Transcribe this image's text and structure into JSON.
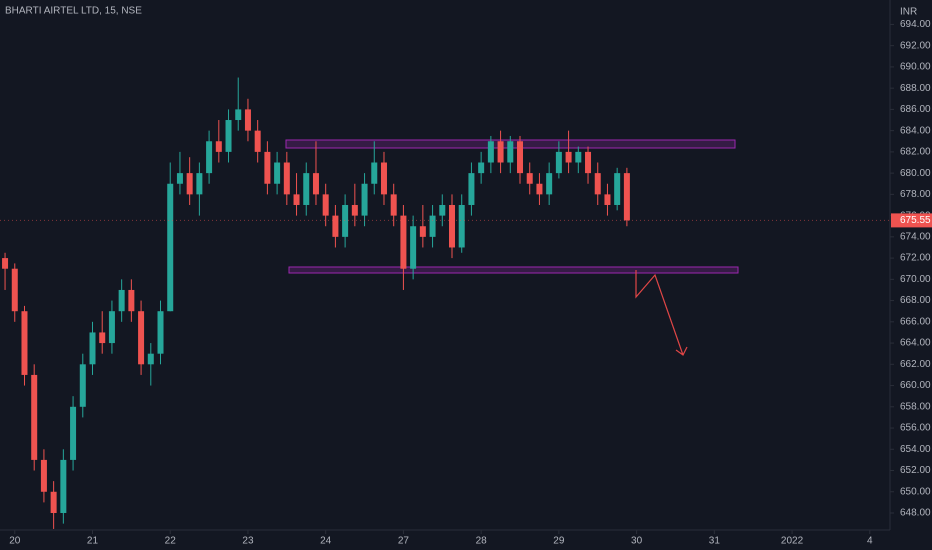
{
  "chart_data": {
    "type": "candlestick",
    "title": "BHARTI AIRTEL LTD, 15, NSE",
    "y_unit": "INR",
    "up_color": "#26a69a",
    "down_color": "#ef5350",
    "x": [
      -0.125,
      0,
      0.125,
      0.25,
      0.375,
      0.5,
      0.625,
      0.75,
      0.875,
      1,
      1.125,
      1.25,
      1.375,
      1.5,
      1.625,
      1.75,
      1.875,
      2,
      2.125,
      2.25,
      2.375,
      2.5,
      2.625,
      2.75,
      2.875,
      3,
      3.125,
      3.25,
      3.375,
      3.5,
      3.625,
      3.75,
      3.875,
      4,
      4.125,
      4.25,
      4.375,
      4.5,
      4.625,
      4.75,
      4.875,
      5,
      5.125,
      5.25,
      5.375,
      5.5,
      5.625,
      5.75,
      5.875,
      6,
      6.125,
      6.25,
      6.375,
      6.5,
      6.625,
      6.75,
      6.875,
      7,
      7.125,
      7.25,
      7.375,
      7.5,
      7.625,
      7.75,
      7.875
    ],
    "open": [
      672,
      671,
      667,
      661,
      653,
      650,
      648,
      653,
      658,
      662,
      665,
      664,
      667,
      669,
      667,
      662,
      663,
      667,
      679,
      680,
      678,
      680,
      683,
      682,
      685,
      686,
      684,
      682,
      679,
      681,
      678,
      677,
      680,
      678,
      676,
      674,
      677,
      676,
      679,
      681,
      678,
      676,
      671,
      675,
      674,
      676,
      677,
      673,
      677,
      680,
      681,
      683,
      681,
      683,
      680,
      679,
      678,
      680,
      682,
      681,
      682,
      680,
      678,
      677,
      680
    ],
    "high": [
      672.5,
      671.5,
      667.5,
      662,
      654,
      651,
      654,
      659,
      663,
      666,
      667,
      668,
      670,
      670,
      668,
      664,
      668,
      681,
      682,
      681.5,
      681,
      684,
      685,
      686,
      689,
      687,
      685,
      683,
      682,
      682,
      680,
      681,
      683,
      679,
      677,
      678,
      679,
      680,
      683,
      682,
      679,
      677,
      676,
      677,
      677,
      678,
      678,
      678,
      681,
      682,
      683.5,
      684,
      683.5,
      683.5,
      681,
      680,
      681,
      683,
      684,
      682.5,
      682.5,
      681,
      679,
      680.5,
      680.5
    ],
    "low": [
      669,
      666,
      660,
      652,
      649,
      646.5,
      647,
      652,
      657,
      661,
      663,
      663,
      666,
      666,
      661,
      660,
      662,
      667,
      678,
      677,
      676,
      679,
      681,
      681,
      684,
      683,
      681,
      678,
      678,
      677,
      676,
      676,
      677,
      675,
      673,
      673,
      675,
      675,
      678,
      677,
      675,
      669,
      670,
      673,
      673,
      675,
      672,
      672.5,
      676,
      679,
      680,
      680,
      680,
      679,
      678,
      677,
      677,
      679.5,
      680,
      680,
      679,
      677,
      676,
      676.5,
      675
    ],
    "close": [
      671,
      667,
      661,
      653,
      650,
      648,
      653,
      658,
      662,
      665,
      664,
      667,
      669,
      667,
      662,
      663,
      667,
      679,
      680,
      678,
      680,
      683,
      682,
      685,
      686,
      684,
      682,
      679,
      681,
      678,
      677,
      680,
      678,
      676,
      674,
      677,
      676,
      679,
      681,
      678,
      676,
      671,
      675,
      674,
      676,
      677,
      673,
      677,
      680,
      681,
      683,
      681,
      683,
      680,
      679,
      678,
      680,
      682,
      681,
      682,
      680,
      678,
      677,
      680,
      675.55
    ],
    "xlim": [
      -0.19,
      11.26
    ],
    "xticks": [
      {
        "value": 0,
        "label": "20"
      },
      {
        "value": 1,
        "label": "21"
      },
      {
        "value": 2,
        "label": "22"
      },
      {
        "value": 3,
        "label": "23"
      },
      {
        "value": 4,
        "label": "24"
      },
      {
        "value": 5,
        "label": "27"
      },
      {
        "value": 6,
        "label": "28"
      },
      {
        "value": 7,
        "label": "29"
      },
      {
        "value": 8,
        "label": "30"
      },
      {
        "value": 9,
        "label": "31"
      },
      {
        "value": 10,
        "label": "2022"
      },
      {
        "value": 11,
        "label": "4"
      }
    ],
    "ylim": [
      646.4,
      696.3
    ],
    "yticks": [
      {
        "value": 648,
        "label": "648.00"
      },
      {
        "value": 650,
        "label": "650.00"
      },
      {
        "value": 652,
        "label": "652.00"
      },
      {
        "value": 654,
        "label": "654.00"
      },
      {
        "value": 656,
        "label": "656.00"
      },
      {
        "value": 658,
        "label": "658.00"
      },
      {
        "value": 660,
        "label": "660.00"
      },
      {
        "value": 662,
        "label": "662.00"
      },
      {
        "value": 664,
        "label": "664.00"
      },
      {
        "value": 666,
        "label": "666.00"
      },
      {
        "value": 668,
        "label": "668.00"
      },
      {
        "value": 670,
        "label": "670.00"
      },
      {
        "value": 672,
        "label": "672.00"
      },
      {
        "value": 674,
        "label": "674.00"
      },
      {
        "value": 676,
        "label": "676.00"
      },
      {
        "value": 678,
        "label": "678.00"
      },
      {
        "value": 680,
        "label": "680.00"
      },
      {
        "value": 682,
        "label": "682.00"
      },
      {
        "value": 684,
        "label": "684.00"
      },
      {
        "value": 686,
        "label": "686.00"
      },
      {
        "value": 688,
        "label": "688.00"
      },
      {
        "value": 690,
        "label": "690.00"
      },
      {
        "value": 692,
        "label": "692.00"
      },
      {
        "value": 694,
        "label": "694.00"
      }
    ],
    "last_label": "675.55",
    "grid": false
  }
}
